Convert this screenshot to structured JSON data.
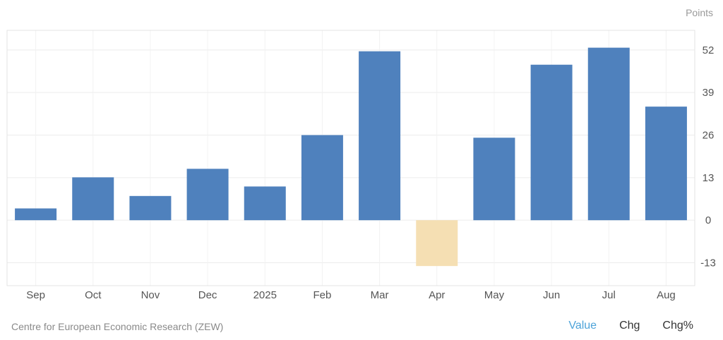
{
  "chart_data": {
    "type": "bar",
    "unit": "Points",
    "categories": [
      "Sep",
      "Oct",
      "Nov",
      "Dec",
      "2025",
      "Feb",
      "Mar",
      "Apr",
      "May",
      "Jun",
      "Jul",
      "Aug"
    ],
    "values": [
      3.6,
      13.1,
      7.4,
      15.7,
      10.3,
      26.0,
      51.6,
      -14.0,
      25.2,
      47.5,
      52.7,
      34.7
    ],
    "yticks": [
      -13,
      0,
      13,
      26,
      39,
      52
    ],
    "ylim": [
      -20,
      58
    ],
    "grid": true,
    "colors": {
      "positive": "#4f81bd",
      "negative": "#f5dfb3"
    }
  },
  "footer": {
    "source": "Centre for European Economic Research (ZEW)",
    "tabs": [
      {
        "label": "Value",
        "active": true
      },
      {
        "label": "Chg",
        "active": false
      },
      {
        "label": "Chg%",
        "active": false
      }
    ]
  }
}
